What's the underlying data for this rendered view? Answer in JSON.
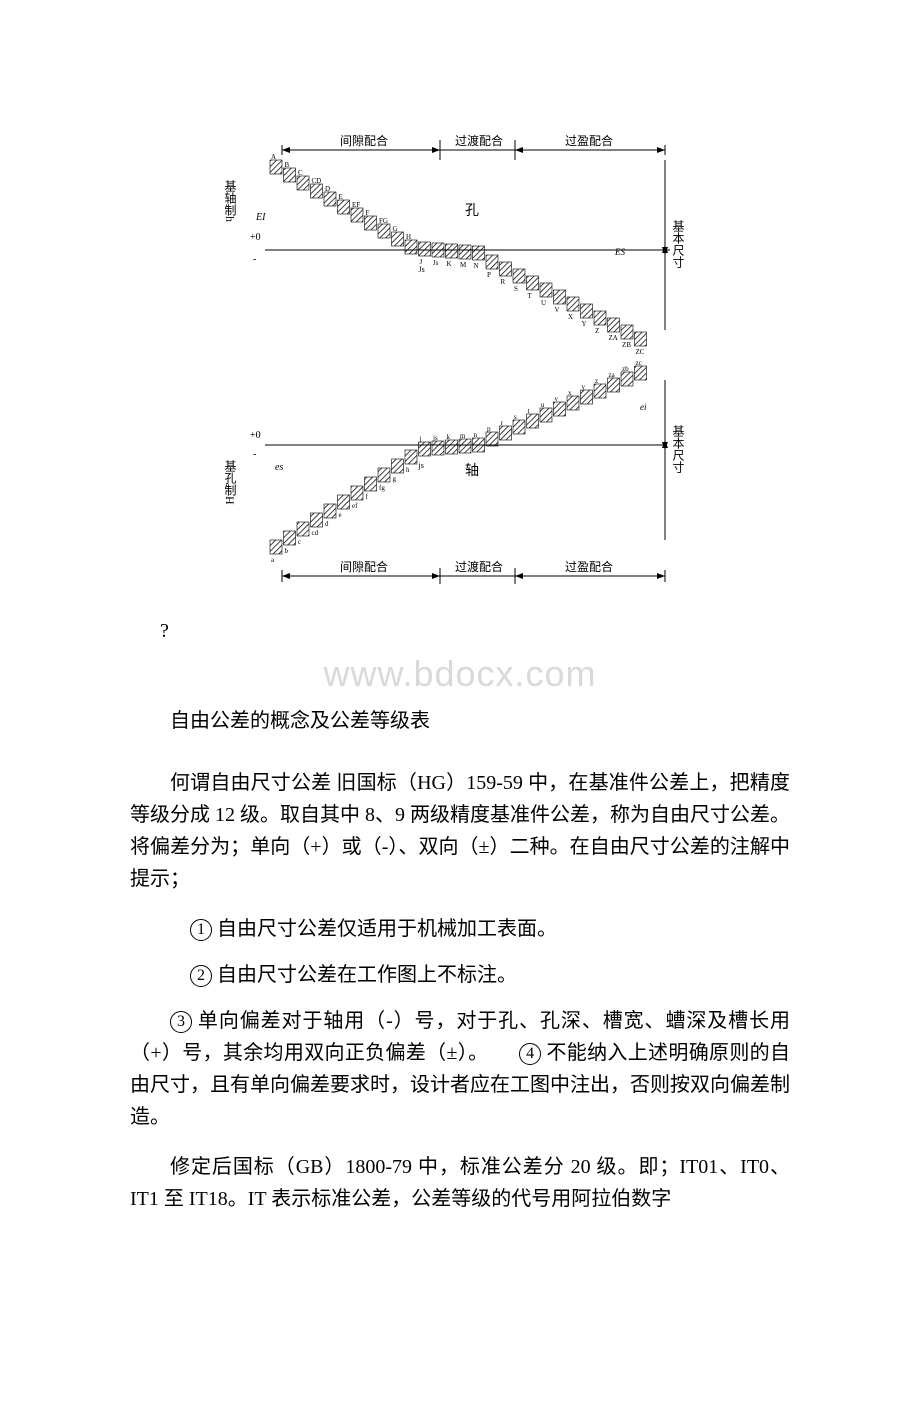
{
  "diagram": {
    "top_labels": {
      "clearance": "间隙配合",
      "transition": "过渡配合",
      "interference": "过盈配合"
    },
    "bottom_labels": {
      "clearance": "间隙配合",
      "transition": "过渡配合",
      "interference": "过盈配合"
    },
    "left_labels": {
      "shaft_system": "基轴制h",
      "hole_system": "基孔制H"
    },
    "right_labels": {
      "basic_size_top": "基本尺寸",
      "basic_size_bottom": "基本尺寸"
    },
    "center_labels": {
      "hole": "孔",
      "shaft": "轴"
    },
    "axis_marks": {
      "ei": "EI",
      "es": "es",
      "plus_zero_top": "+0",
      "plus_zero_bottom": "+0",
      "minus": "-",
      "ES": "ES",
      "ei_lower": "ei"
    },
    "upper_letters": [
      "A",
      "B",
      "C",
      "CD",
      "D",
      "E",
      "EF",
      "F",
      "FG",
      "G",
      "H",
      "J",
      "Js",
      "K",
      "M",
      "N",
      "P",
      "R",
      "S",
      "T",
      "U",
      "V",
      "X",
      "Y",
      "Z",
      "ZA",
      "ZB",
      "ZC"
    ],
    "lower_letters": [
      "a",
      "b",
      "c",
      "cd",
      "d",
      "e",
      "ef",
      "f",
      "fg",
      "g",
      "h",
      "j",
      "js",
      "k",
      "m",
      "n",
      "p",
      "r",
      "s",
      "t",
      "u",
      "v",
      "x",
      "y",
      "z",
      "za",
      "zb",
      "zc"
    ],
    "colors": {
      "stroke": "#000000",
      "hatch": "#000000",
      "background": "#ffffff"
    },
    "box_size": {
      "w": 12,
      "h": 14
    },
    "font_size_labels": 12,
    "font_size_letters": 7
  },
  "question_mark": "?",
  "watermark": "www.bdocx.com",
  "section_title": "自由公差的概念及公差等级表",
  "para1": "何谓自由尺寸公差 旧国标（HG）159-59 中，在基准件公差上，把精度等级分成 12 级。取自其中 8、9 两级精度基准件公差，称为自由尺寸公差。将偏差分为；单向（+）或（-）、双向（±）二种。在自由尺寸公差的注解中提示；",
  "item1_num": "1",
  "item1_text": " 自由尺寸公差仅适用于机械加工表面。",
  "item2_num": "2",
  "item2_text": " 自由尺寸公差在工作图上不标注。",
  "item3_num": "3",
  "item3_text": " 单向偏差对于轴用（-）号，对于孔、孔深、槽宽、螬深及槽长用（+）号，其余均用双向正负偏差（±）。　　",
  "item4_num": "4",
  "item4_text": " 不能纳入上述明确原则的自由尺寸，且有单向偏差要求时，设计者应在工图中注出，否则按双向偏差制造。",
  "para2": "修定后国标（GB）1800-79 中，标准公差分 20 级。即；IT01、IT0、IT1 至 IT18。IT 表示标准公差，公差等级的代号用阿拉伯数字"
}
